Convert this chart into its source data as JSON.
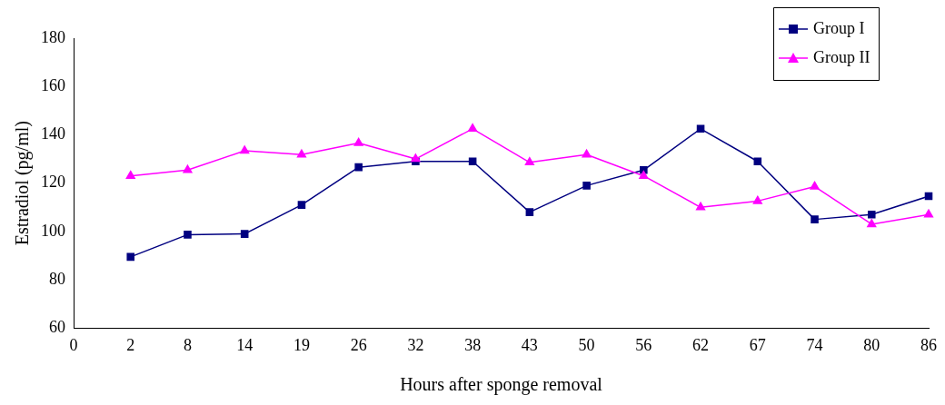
{
  "chart_data": {
    "type": "line",
    "xlabel": "Hours after sponge removal",
    "ylabel": "Estradiol (pg/ml)",
    "categories": [
      "0",
      "2",
      "8",
      "14",
      "19",
      "26",
      "32",
      "38",
      "43",
      "50",
      "56",
      "62",
      "67",
      "74",
      "80",
      "86"
    ],
    "ylim": [
      60,
      180
    ],
    "yticks": [
      60,
      80,
      100,
      120,
      140,
      160,
      180
    ],
    "grid": false,
    "legend": "top right",
    "line_style": "solid",
    "series": [
      {
        "name": "Group I",
        "color": "#000080",
        "marker": "square",
        "values": [
          null,
          89.5,
          98.7,
          99,
          111,
          126.6,
          129,
          129,
          108,
          119,
          125.4,
          142.5,
          129,
          105,
          107,
          114.6
        ]
      },
      {
        "name": "Group II",
        "color": "#ff00ff",
        "marker": "triangle",
        "values": [
          null,
          123,
          125.4,
          133.4,
          131.8,
          136.6,
          130,
          142.5,
          128.6,
          131.8,
          123,
          110,
          112.6,
          118.6,
          103,
          107
        ]
      }
    ]
  }
}
